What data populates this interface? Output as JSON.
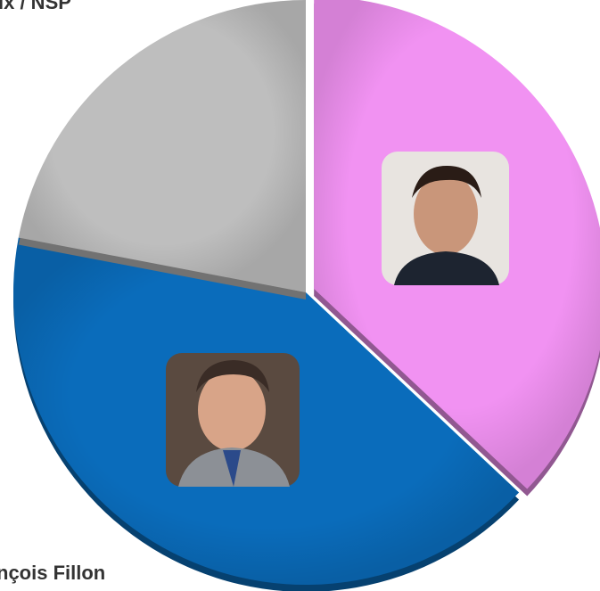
{
  "chart_data": {
    "type": "pie",
    "categories": [
      null,
      "nçois Fillon",
      "ix / NSP"
    ],
    "values": [
      37,
      41,
      22
    ],
    "colors": [
      "#f192f2",
      "#0a6cbb",
      "#bebebe"
    ]
  }
}
